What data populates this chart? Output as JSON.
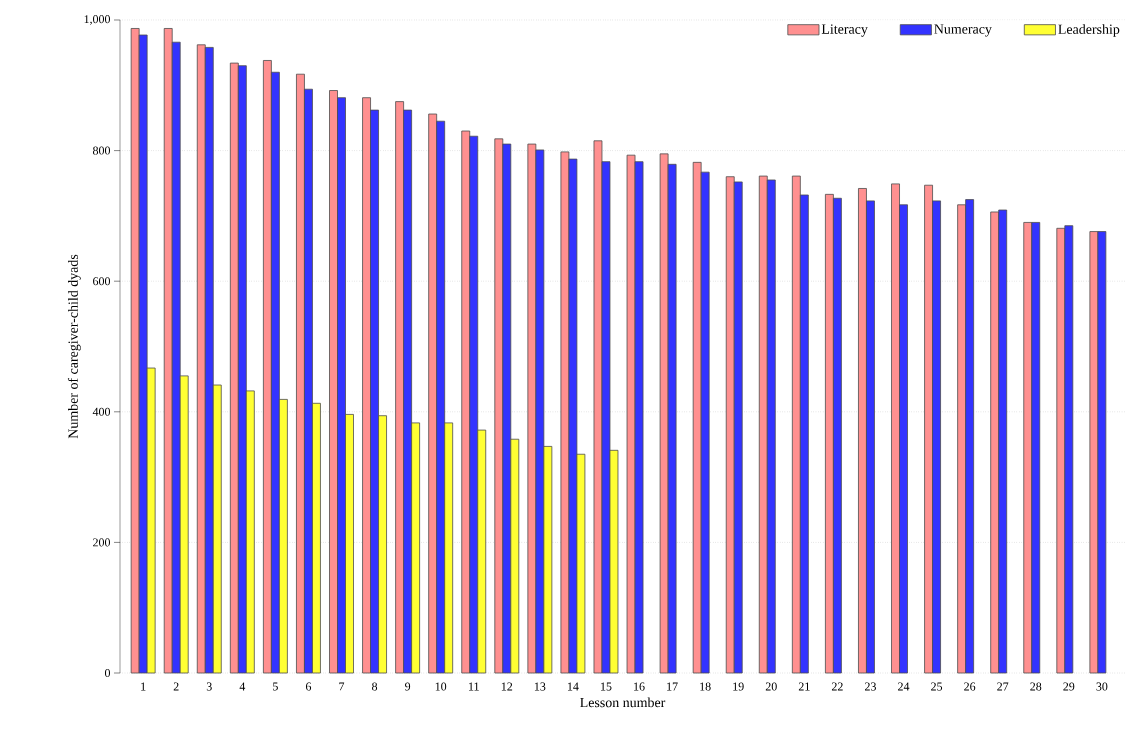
{
  "chart_data": {
    "type": "bar",
    "xlabel": "Lesson number",
    "ylabel": "Number of caregiver-child dyads",
    "categories": [
      "1",
      "2",
      "3",
      "4",
      "5",
      "6",
      "7",
      "8",
      "9",
      "10",
      "11",
      "12",
      "13",
      "14",
      "15",
      "16",
      "17",
      "18",
      "19",
      "20",
      "21",
      "22",
      "23",
      "24",
      "25",
      "26",
      "27",
      "28",
      "29",
      "30"
    ],
    "series": [
      {
        "name": "Literacy",
        "color": "#ff9090",
        "values": [
          987,
          987,
          962,
          934,
          938,
          917,
          892,
          881,
          875,
          856,
          830,
          818,
          810,
          798,
          815,
          793,
          795,
          782,
          760,
          761,
          761,
          733,
          742,
          749,
          747,
          717,
          706,
          690,
          681,
          676
        ]
      },
      {
        "name": "Numeracy",
        "color": "#3333ff",
        "values": [
          977,
          966,
          958,
          930,
          920,
          894,
          881,
          862,
          862,
          845,
          822,
          810,
          801,
          787,
          783,
          783,
          779,
          767,
          752,
          755,
          732,
          727,
          723,
          717,
          723,
          725,
          709,
          690,
          685,
          676
        ]
      },
      {
        "name": "Leadership",
        "color": "#ffff33",
        "values": [
          467,
          455,
          441,
          432,
          419,
          413,
          396,
          394,
          383,
          383,
          372,
          358,
          347,
          335,
          341,
          null,
          null,
          null,
          null,
          null,
          null,
          null,
          null,
          null,
          null,
          null,
          null,
          null,
          null,
          null
        ]
      }
    ],
    "ylim": [
      0,
      1000
    ],
    "yticks": [
      {
        "value": 0,
        "label": "0"
      },
      {
        "value": 200,
        "label": "200"
      },
      {
        "value": 400,
        "label": "400"
      },
      {
        "value": 600,
        "label": "600"
      },
      {
        "value": 800,
        "label": "800"
      },
      {
        "value": 1000,
        "label": "1,000"
      }
    ],
    "grid": "y",
    "legend": "top right"
  }
}
